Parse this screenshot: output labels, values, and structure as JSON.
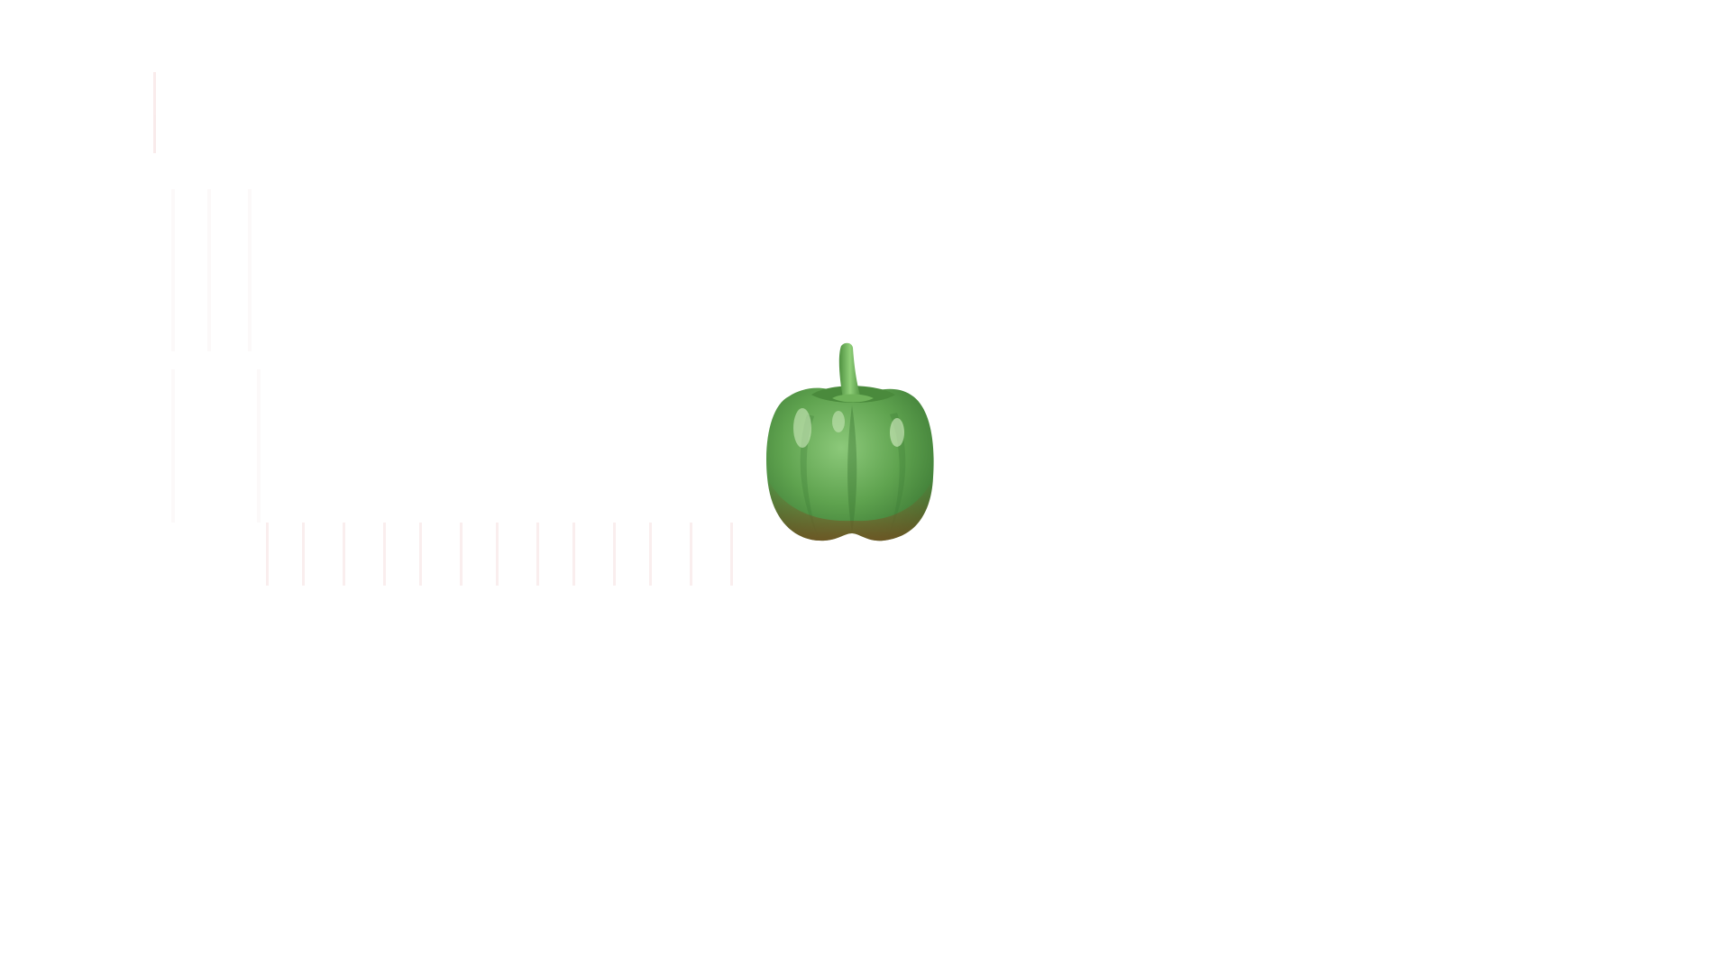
{
  "scene": {
    "background_color": "#ffffff",
    "subject": "green-bell-pepper-icon",
    "colors": {
      "pepper_light": "#8cc97a",
      "pepper_mid": "#5fa34f",
      "pepper_dark": "#3d7a35",
      "pepper_shadow": "#7a5a2a",
      "stem": "#6fb25a",
      "highlight": "#d8f0c8",
      "streak_tint": "#f6dede"
    }
  }
}
